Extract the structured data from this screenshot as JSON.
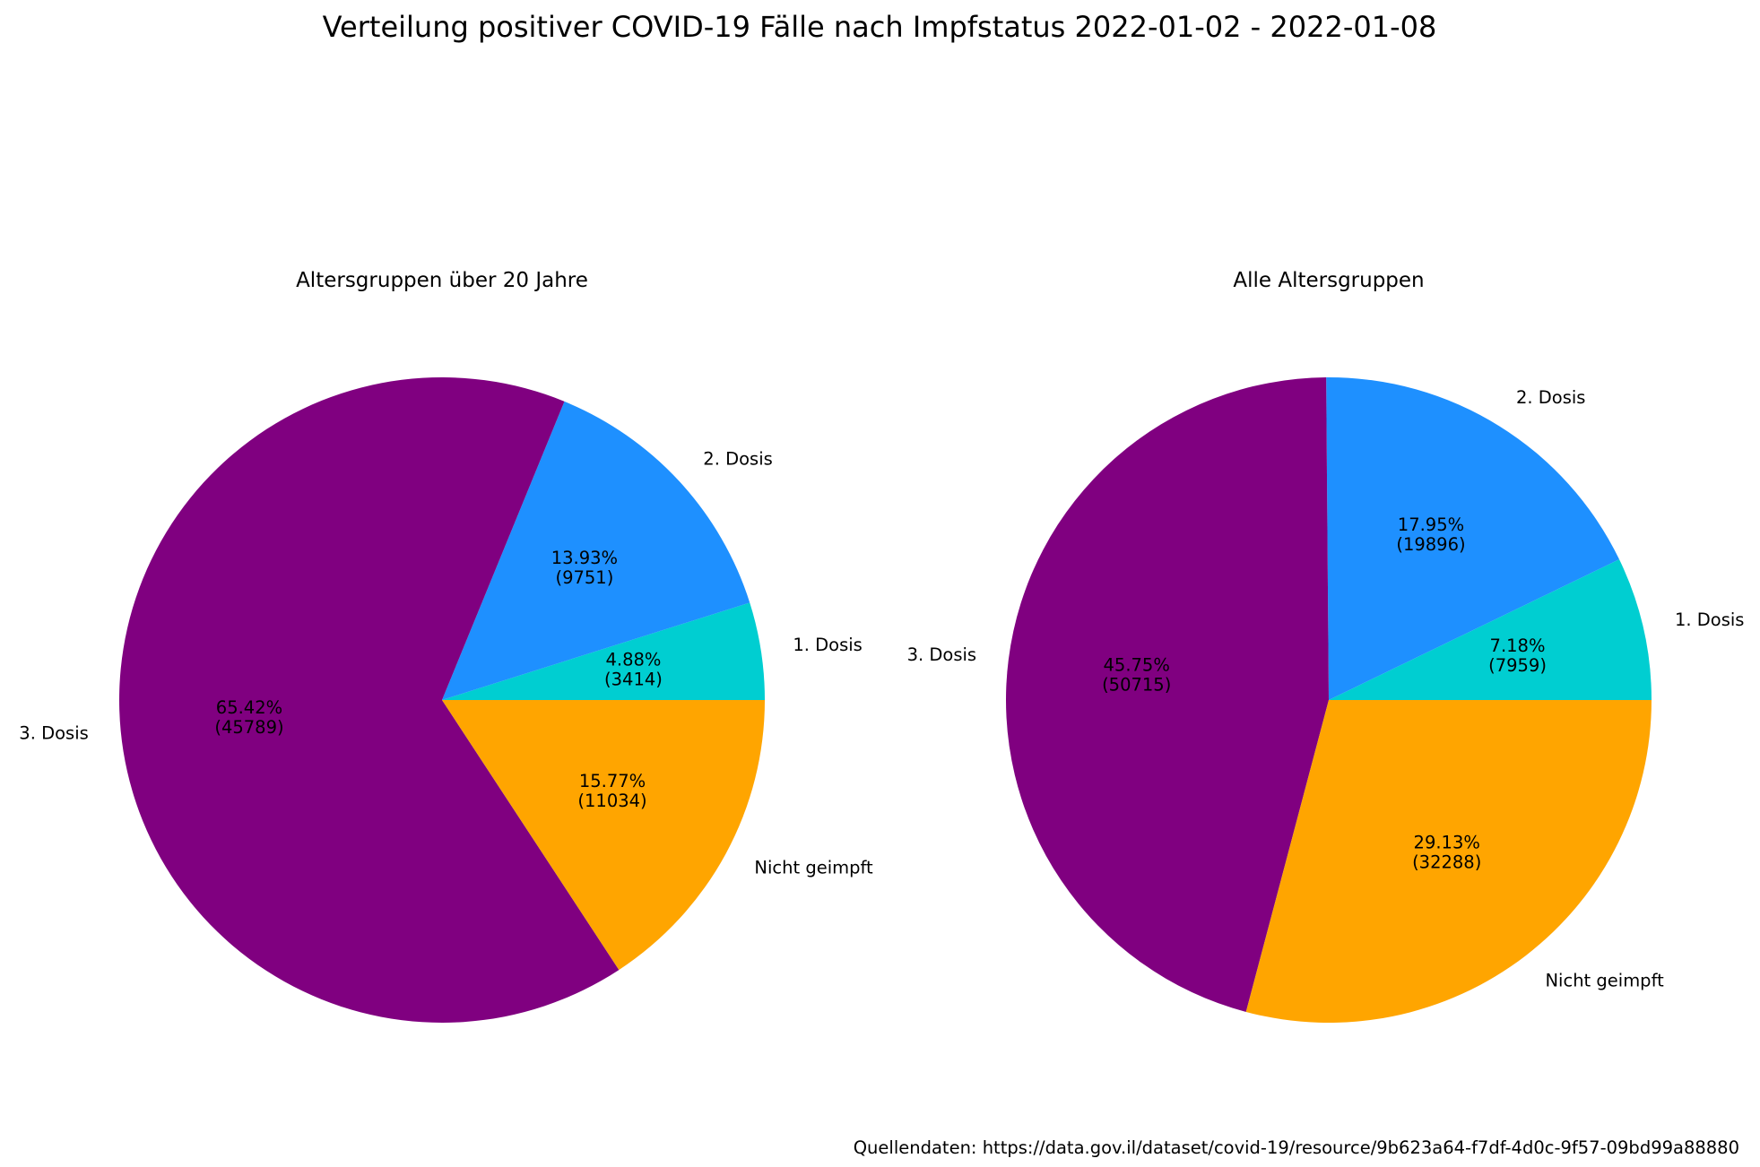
{
  "figure": {
    "title": "Verteilung positiver COVID-19 Fälle nach Impfstatus 2022-01-02 - 2022-01-08",
    "source": "Quellendaten: https://data.gov.il/dataset/covid-19/resource/9b623a64-f7df-4d0c-9f57-09bd99a88880"
  },
  "chart_data": [
    {
      "type": "pie",
      "title": "Altersgruppen über 20 Jahre",
      "slices": [
        {
          "label": "1. Dosis",
          "value": 3414,
          "percent": "4.88%",
          "count": "(3414)",
          "color": "#00CED1"
        },
        {
          "label": "2. Dosis",
          "value": 9751,
          "percent": "13.93%",
          "count": "(9751)",
          "color": "#1E90FF"
        },
        {
          "label": "3. Dosis",
          "value": 45789,
          "percent": "65.42%",
          "count": "(45789)",
          "color": "#800080"
        },
        {
          "label": "Nicht geimpft",
          "value": 11034,
          "percent": "15.77%",
          "count": "(11034)",
          "color": "#FFA500"
        }
      ]
    },
    {
      "type": "pie",
      "title": "Alle Altersgruppen",
      "slices": [
        {
          "label": "1. Dosis",
          "value": 7959,
          "percent": "7.18%",
          "count": "(7959)",
          "color": "#00CED1"
        },
        {
          "label": "2. Dosis",
          "value": 19896,
          "percent": "17.95%",
          "count": "(19896)",
          "color": "#1E90FF"
        },
        {
          "label": "3. Dosis",
          "value": 50715,
          "percent": "45.75%",
          "count": "(50715)",
          "color": "#800080"
        },
        {
          "label": "Nicht geimpft",
          "value": 32288,
          "percent": "29.13%",
          "count": "(32288)",
          "color": "#FFA500"
        }
      ]
    }
  ]
}
